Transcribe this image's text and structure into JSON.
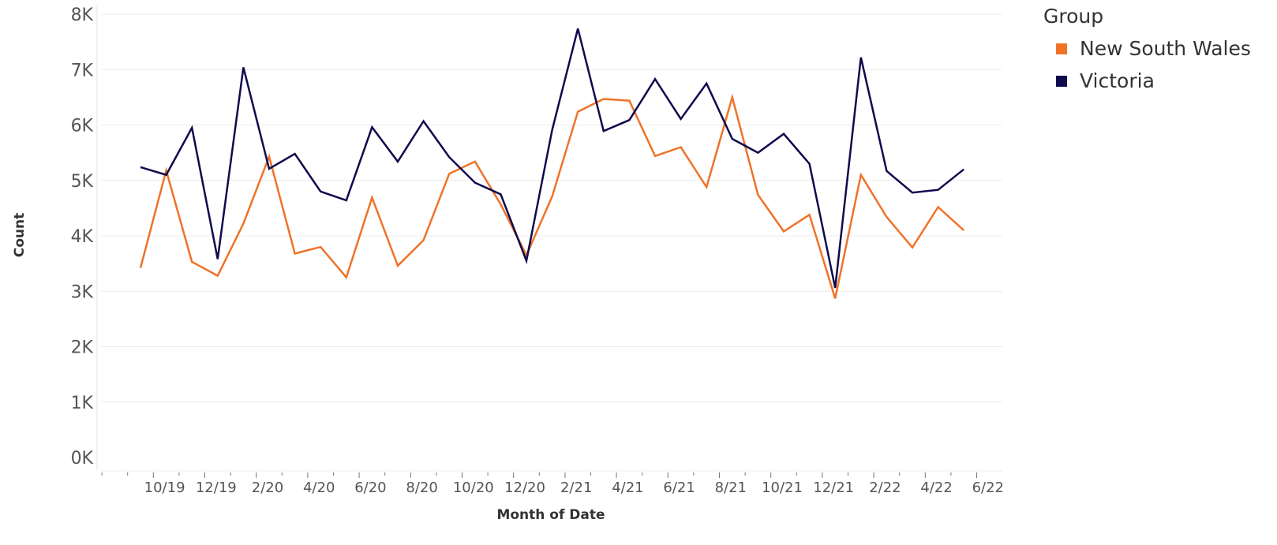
{
  "chart_data": {
    "type": "line",
    "xlabel": "Month of Date",
    "ylabel": "Count",
    "ylim": [
      0,
      8000
    ],
    "yticks": [
      "0K",
      "1K",
      "2K",
      "3K",
      "4K",
      "5K",
      "6K",
      "7K",
      "8K"
    ],
    "ytick_values": [
      0,
      1000,
      2000,
      3000,
      4000,
      5000,
      6000,
      7000,
      8000
    ],
    "x": [
      "9/19",
      "10/19",
      "11/19",
      "12/19",
      "1/20",
      "2/20",
      "3/20",
      "4/20",
      "5/20",
      "6/20",
      "7/20",
      "8/20",
      "9/20",
      "10/20",
      "11/20",
      "12/20",
      "1/21",
      "2/21",
      "3/21",
      "4/21",
      "5/21",
      "6/21",
      "7/21",
      "8/21",
      "9/21",
      "10/21",
      "11/21",
      "12/21",
      "1/22",
      "2/22",
      "3/22",
      "4/22",
      "5/22"
    ],
    "xtick_labels": [
      "10/19",
      "12/19",
      "2/20",
      "4/20",
      "6/20",
      "8/20",
      "10/20",
      "12/20",
      "2/21",
      "4/21",
      "6/21",
      "8/21",
      "10/21",
      "12/21",
      "2/22",
      "4/22",
      "6/22"
    ],
    "grid": true,
    "legend": {
      "title": "Group",
      "position": "right"
    },
    "series": [
      {
        "name": "New South Wales",
        "color": "#f07228",
        "values": [
          3420,
          5180,
          3530,
          3280,
          4220,
          5430,
          3680,
          3800,
          3250,
          4690,
          3460,
          3920,
          5120,
          5340,
          4570,
          3650,
          4710,
          6240,
          6470,
          6440,
          5440,
          5600,
          4880,
          6500,
          4740,
          4080,
          4380,
          2870,
          5100,
          4340,
          3790,
          4520,
          4100
        ]
      },
      {
        "name": "Victoria",
        "color": "#0f0a4d",
        "values": [
          5240,
          5100,
          5950,
          3580,
          7040,
          5210,
          5480,
          4800,
          4640,
          5960,
          5340,
          6070,
          5420,
          4960,
          4750,
          3550,
          5910,
          7740,
          5890,
          6090,
          6830,
          6110,
          6750,
          5750,
          5500,
          5840,
          5300,
          3060,
          7220,
          5170,
          4780,
          4830,
          5200
        ]
      }
    ]
  }
}
